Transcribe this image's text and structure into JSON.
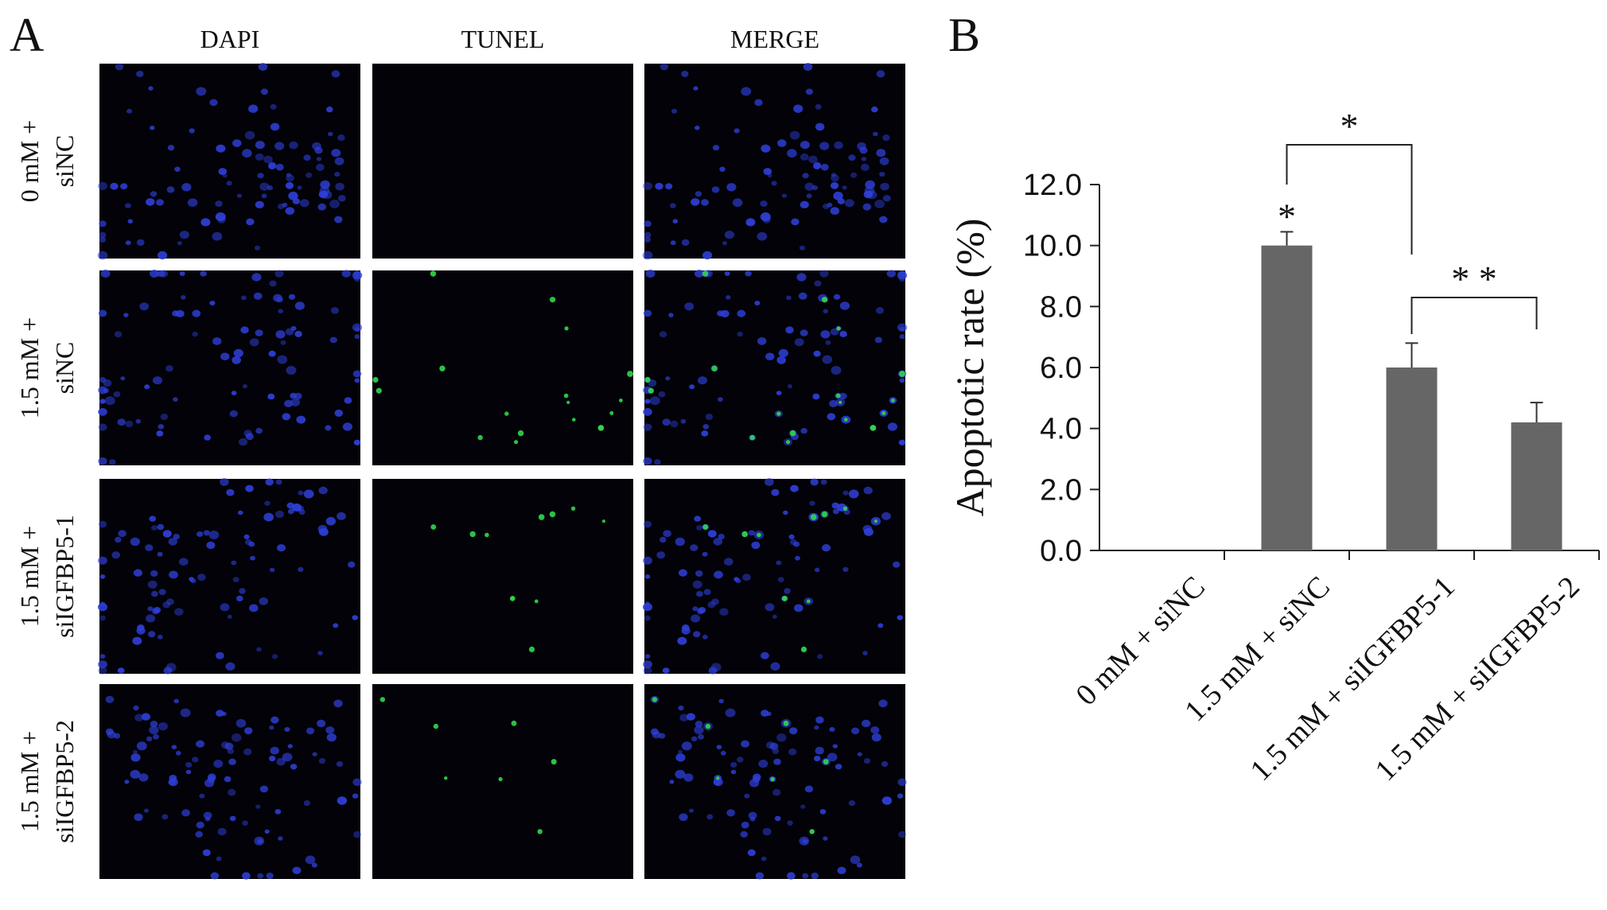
{
  "panel_a": {
    "label": "A",
    "columns": [
      "DAPI",
      "TUNEL",
      "MERGE"
    ],
    "rows": [
      {
        "line1": "0 mM +",
        "line2": "siNC",
        "tunel_signal": 0.0
      },
      {
        "line1": "1.5 mM +",
        "line2": "siNC",
        "tunel_signal": 1.0
      },
      {
        "line1": "1.5 mM +",
        "line2": "siIGFBP5-1",
        "tunel_signal": 0.6
      },
      {
        "line1": "1.5 mM +",
        "line2": "siIGFBP5-2",
        "tunel_signal": 0.4
      }
    ],
    "colors": {
      "dapi": "#2f3fd8",
      "tunel": "#2fd84a",
      "background": "#020208"
    }
  },
  "panel_b": {
    "label": "B",
    "chart_data": {
      "type": "bar",
      "categories": [
        "0 mM + siNC",
        "1.5 mM + siNC",
        "1.5 mM + siIGFBP5-1",
        "1.5 mM + siIGFBP5-2"
      ],
      "values": [
        0.0,
        10.0,
        6.0,
        4.2
      ],
      "errors": [
        0.0,
        0.45,
        0.8,
        0.65
      ],
      "ylabel": "Apoptotic rate (%)",
      "ylim": [
        0,
        12
      ],
      "yticks": [
        "0.0",
        "2.0",
        "4.0",
        "6.0",
        "8.0",
        "10.0",
        "12.0"
      ],
      "bar_color": "#666666",
      "annotations": [
        {
          "type": "star",
          "category": 1,
          "text": "*"
        },
        {
          "type": "bracket",
          "from": 1,
          "to": 2,
          "text": "*"
        },
        {
          "type": "bracket",
          "from": 2,
          "to": 3,
          "text": "* *"
        }
      ]
    }
  }
}
